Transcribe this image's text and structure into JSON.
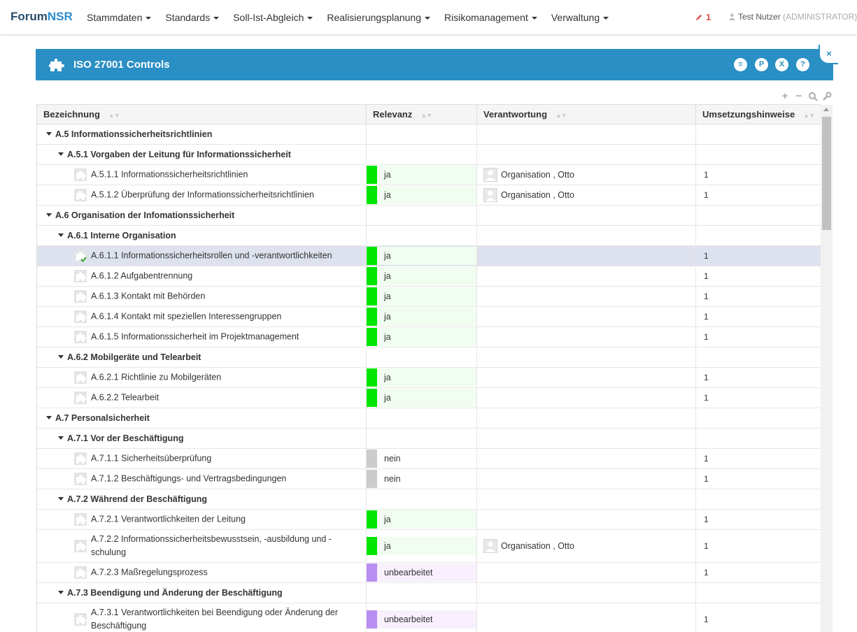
{
  "app": {
    "brand_a": "Forum",
    "brand_b": "NSR"
  },
  "nav": {
    "items": [
      {
        "label": "Stammdaten"
      },
      {
        "label": "Standards"
      },
      {
        "label": "Soll-Ist-Abgleich"
      },
      {
        "label": "Realisierungsplanung"
      },
      {
        "label": "Risikomanagement"
      },
      {
        "label": "Verwaltung"
      }
    ],
    "notification_count": "1",
    "user_name": "Test Nutzer",
    "user_role": "(ADMINISTRATOR)"
  },
  "panel": {
    "title": "ISO 27001 Controls",
    "buttons": [
      {
        "icon": "list-icon",
        "glyph": "≡"
      },
      {
        "icon": "pdf-icon",
        "glyph": "P"
      },
      {
        "icon": "excel-icon",
        "glyph": "X"
      },
      {
        "icon": "help-icon",
        "glyph": "?"
      }
    ],
    "close_glyph": "×"
  },
  "colors": {
    "accent": "#2a8fc4",
    "ja": "#00e600",
    "ja_bg": "#f0fdf0",
    "nein": "#cccccc",
    "unbearbeitet": "#b98ef2",
    "unbearbeitet_bg": "#f8f0fd"
  },
  "table": {
    "columns": [
      {
        "label": "Bezeichnung"
      },
      {
        "label": "Relevanz"
      },
      {
        "label": "Verantwortung"
      },
      {
        "label": "Umsetzungshinweise"
      }
    ],
    "rows": [
      {
        "type": "group",
        "level": 0,
        "label": "A.5 Informationssicherheitsrichtlinien"
      },
      {
        "type": "group",
        "level": 1,
        "label": "A.5.1 Vorgaben der Leitung für Informationssicherheit"
      },
      {
        "type": "leaf",
        "label": "A.5.1.1 Informationssicherheitsrichtlinien",
        "relevance": "ja",
        "responsible": "Organisation , Otto",
        "hint": "1"
      },
      {
        "type": "leaf",
        "label": "A.5.1.2 Überprüfung der Informationssicherheitsrichtlinien",
        "relevance": "ja",
        "responsible": "Organisation , Otto",
        "hint": "1"
      },
      {
        "type": "group",
        "level": 0,
        "label": "A.6 Organisation der Infomationssicherheit"
      },
      {
        "type": "group",
        "level": 1,
        "label": "A.6.1 Interne Organisation"
      },
      {
        "type": "leaf",
        "label": "A.6.1.1 Informationssicherheitsrollen und -verantwortlichkeiten",
        "relevance": "ja",
        "responsible": "",
        "hint": "1",
        "selected": true,
        "checked": true
      },
      {
        "type": "leaf",
        "label": "A.6.1.2 Aufgabentrennung",
        "relevance": "ja",
        "responsible": "",
        "hint": "1"
      },
      {
        "type": "leaf",
        "label": "A.6.1.3 Kontakt mit Behörden",
        "relevance": "ja",
        "responsible": "",
        "hint": "1"
      },
      {
        "type": "leaf",
        "label": "A.6.1.4 Kontakt mit speziellen Interessengruppen",
        "relevance": "ja",
        "responsible": "",
        "hint": "1"
      },
      {
        "type": "leaf",
        "label": "A.6.1.5 Informationssicherheit im Projektmanagement",
        "relevance": "ja",
        "responsible": "",
        "hint": "1"
      },
      {
        "type": "group",
        "level": 1,
        "label": "A.6.2 Mobilgeräte und Telearbeit"
      },
      {
        "type": "leaf",
        "label": "A.6.2.1 Richtlinie zu Mobilgeräten",
        "relevance": "ja",
        "responsible": "",
        "hint": "1"
      },
      {
        "type": "leaf",
        "label": "A.6.2.2 Telearbeit",
        "relevance": "ja",
        "responsible": "",
        "hint": "1"
      },
      {
        "type": "group",
        "level": 0,
        "label": "A.7 Personalsicherheit"
      },
      {
        "type": "group",
        "level": 1,
        "label": "A.7.1 Vor der Beschäftigung"
      },
      {
        "type": "leaf",
        "label": "A.7.1.1 Sicherheitsüberprüfung",
        "relevance": "nein",
        "responsible": "",
        "hint": "1"
      },
      {
        "type": "leaf",
        "label": "A.7.1.2 Beschäftigungs- und Vertragsbedingungen",
        "relevance": "nein",
        "responsible": "",
        "hint": "1"
      },
      {
        "type": "group",
        "level": 1,
        "label": "A.7.2 Während der Beschäftigung"
      },
      {
        "type": "leaf",
        "label": "A.7.2.1 Verantwortlichkeiten der Leitung",
        "relevance": "ja",
        "responsible": "",
        "hint": "1"
      },
      {
        "type": "leaf",
        "label": "A.7.2.2 Informationssicherheitsbewusstsein, -ausbildung und -schulung",
        "relevance": "ja",
        "responsible": "Organisation , Otto",
        "hint": "1",
        "tall": true
      },
      {
        "type": "leaf",
        "label": "A.7.2.3 Maßregelungsprozess",
        "relevance": "unbearbeitet",
        "responsible": "",
        "hint": "1"
      },
      {
        "type": "group",
        "level": 1,
        "label": "A.7.3 Beendigung und Änderung der Beschäftigung"
      },
      {
        "type": "leaf",
        "label": "A.7.3.1 Verantwortlichkeiten bei Beendigung oder Änderung der Beschäftigung",
        "relevance": "unbearbeitet",
        "responsible": "",
        "hint": "1",
        "tall": true
      }
    ]
  }
}
